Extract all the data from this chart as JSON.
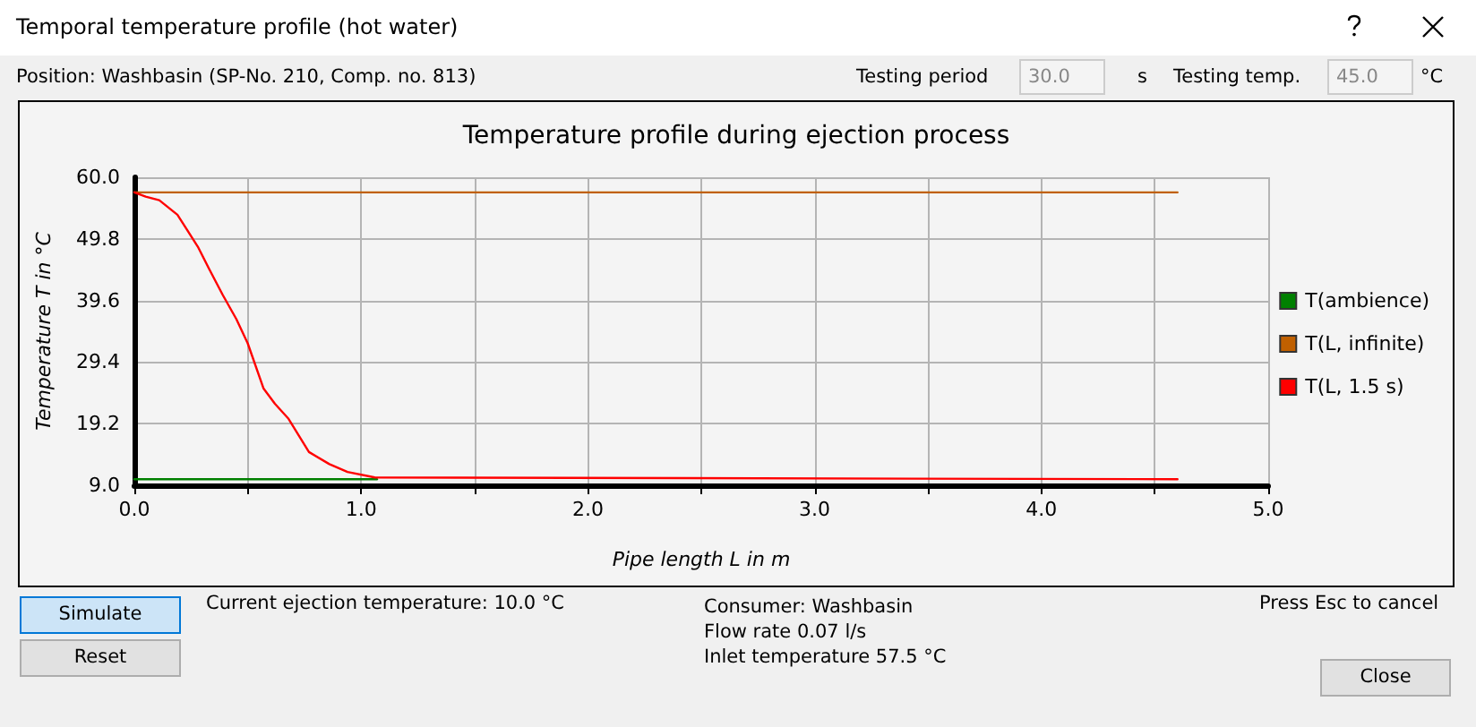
{
  "chart_data": {
    "type": "line",
    "title": "Temperature profile during ejection process",
    "xlabel": "Pipe length L in m",
    "ylabel": "Temperature T in °C",
    "xlim": [
      0,
      5
    ],
    "ylim": [
      9,
      60
    ],
    "xticks": [
      {
        "value": 0,
        "label": "0.0"
      },
      {
        "value": 0.5,
        "label": null
      },
      {
        "value": 1,
        "label": "1.0"
      },
      {
        "value": 1.5,
        "label": null
      },
      {
        "value": 2,
        "label": "2.0"
      },
      {
        "value": 2.5,
        "label": null
      },
      {
        "value": 3,
        "label": "3.0"
      },
      {
        "value": 3.5,
        "label": null
      },
      {
        "value": 4,
        "label": "4.0"
      },
      {
        "value": 4.5,
        "label": null
      },
      {
        "value": 5,
        "label": "5.0"
      }
    ],
    "yticks": [
      {
        "value": 9,
        "label": "9.0"
      },
      {
        "value": 19.2,
        "label": "19.2"
      },
      {
        "value": 29.4,
        "label": "29.4"
      },
      {
        "value": 39.6,
        "label": "39.6"
      },
      {
        "value": 49.8,
        "label": "49.8"
      },
      {
        "value": 60,
        "label": "60.0"
      }
    ],
    "grid": true,
    "legend": "right",
    "marker": "none",
    "line_style": "solid",
    "series": [
      {
        "name": "T(ambience)",
        "color": "#008000",
        "x": [
          0,
          1.07
        ],
        "values": [
          10,
          10
        ]
      },
      {
        "name": "T(L, infinite)",
        "color": "#c06000",
        "x": [
          0,
          4.6
        ],
        "values": [
          57.5,
          57.5
        ]
      },
      {
        "name": "T(L, 1.5 s)",
        "color": "#ff0000",
        "x": [
          0,
          0.05,
          0.11,
          0.19,
          0.28,
          0.33,
          0.39,
          0.45,
          0.5,
          0.57,
          0.62,
          0.68,
          0.77,
          0.86,
          0.94,
          1.06,
          4.6
        ],
        "values": [
          57.5,
          56.8,
          56.2,
          53.8,
          48.5,
          44.8,
          40.5,
          36.5,
          32.5,
          25,
          22.5,
          20,
          14.5,
          12.5,
          11.2,
          10.3,
          10
        ]
      }
    ],
    "annotations": [
      "Temporal temperature profile (hot water)",
      "Position: Washbasin (SP-No. 210, Comp. no. 813)",
      "Testing period",
      "30.0",
      "s",
      "Testing temp.",
      "45.0",
      "°C",
      "Current ejection temperature: 10.0 °C",
      "Consumer: Washbasin",
      "Flow rate 0.07 l/s",
      "Inlet temperature 57.5 °C",
      "Press Esc to cancel",
      "Simulate",
      "Reset",
      "Close"
    ]
  }
}
